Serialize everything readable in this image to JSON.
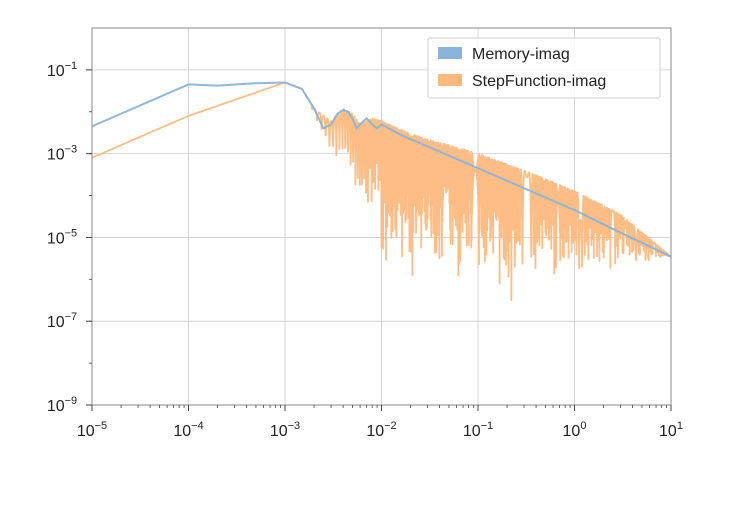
{
  "chart_data": {
    "type": "line",
    "title": "",
    "xlabel": "",
    "ylabel": "",
    "xscale": "log",
    "yscale": "log",
    "xlim": [
      1e-05,
      10
    ],
    "ylim": [
      1e-09,
      1
    ],
    "grid": true,
    "legend_position": "top-right",
    "x_ticks": [
      {
        "base": "10",
        "exp": "−5"
      },
      {
        "base": "10",
        "exp": "−4"
      },
      {
        "base": "10",
        "exp": "−3"
      },
      {
        "base": "10",
        "exp": "−2"
      },
      {
        "base": "10",
        "exp": "−1"
      },
      {
        "base": "10",
        "exp": "0"
      },
      {
        "base": "10",
        "exp": "1"
      }
    ],
    "y_ticks": [
      {
        "base": "10",
        "exp": "−1"
      },
      {
        "base": "10",
        "exp": "−3"
      },
      {
        "base": "10",
        "exp": "−5"
      },
      {
        "base": "10",
        "exp": "−7"
      },
      {
        "base": "10",
        "exp": "−9"
      }
    ],
    "series": [
      {
        "name": "Memory-imag",
        "color": "#8ab4d8",
        "points": [
          [
            1e-05,
            0.0045
          ],
          [
            0.0001,
            0.045
          ],
          [
            0.0002,
            0.042
          ],
          [
            0.0005,
            0.048
          ],
          [
            0.001,
            0.05
          ],
          [
            0.0015,
            0.035
          ],
          [
            0.002,
            0.012
          ],
          [
            0.0025,
            0.004
          ],
          [
            0.003,
            0.005
          ],
          [
            0.0035,
            0.009
          ],
          [
            0.004,
            0.011
          ],
          [
            0.0045,
            0.01
          ],
          [
            0.005,
            0.007
          ],
          [
            0.0055,
            0.004
          ],
          [
            0.006,
            0.005
          ],
          [
            0.007,
            0.007
          ],
          [
            0.008,
            0.005
          ],
          [
            0.009,
            0.004
          ],
          [
            0.01,
            0.005
          ],
          [
            0.012,
            0.004
          ],
          [
            0.015,
            0.003
          ],
          [
            0.02,
            0.0022
          ],
          [
            0.03,
            0.0015
          ],
          [
            0.05,
            0.0009
          ],
          [
            0.1,
            0.00045
          ],
          [
            0.3,
            0.00015
          ],
          [
            1,
            4.5e-05
          ],
          [
            3,
            1.3e-05
          ],
          [
            10,
            3.5e-06
          ]
        ]
      },
      {
        "name": "StepFunction-imag",
        "color": "#fdb97e",
        "upper_envelope": [
          [
            1e-05,
            0.0008
          ],
          [
            0.0001,
            0.008
          ],
          [
            0.001,
            0.05
          ],
          [
            0.0015,
            0.035
          ],
          [
            0.002,
            0.012
          ],
          [
            0.003,
            0.006
          ],
          [
            0.004,
            0.012
          ],
          [
            0.005,
            0.009
          ],
          [
            0.006,
            0.005
          ],
          [
            0.008,
            0.007
          ],
          [
            0.01,
            0.006
          ],
          [
            0.015,
            0.004
          ],
          [
            0.02,
            0.003
          ],
          [
            0.03,
            0.0022
          ],
          [
            0.05,
            0.0016
          ],
          [
            0.1,
            0.001
          ],
          [
            0.3,
            0.0004
          ],
          [
            1,
            0.00013
          ],
          [
            3,
            3.5e-05
          ],
          [
            10,
            3.5e-06
          ]
        ],
        "lower_envelope": [
          [
            0.01,
            1.8e-07
          ],
          [
            0.015,
            2.5e-07
          ],
          [
            0.02,
            3.5e-07
          ],
          [
            0.03,
            3e-07
          ],
          [
            0.05,
            2.5e-07
          ],
          [
            0.1,
            1.8e-07
          ],
          [
            0.15,
            1.2e-07
          ],
          [
            0.2,
            1e-07
          ],
          [
            0.3,
            1.5e-07
          ],
          [
            0.5,
            3e-07
          ],
          [
            1,
            5e-07
          ],
          [
            2,
            1e-06
          ],
          [
            5,
            2e-06
          ],
          [
            10,
            3.5e-06
          ]
        ],
        "minima": [
          [
            0.0028,
            3e-07
          ],
          [
            0.0057,
            6e-07
          ],
          [
            0.0085,
            2e-08
          ]
        ]
      }
    ]
  }
}
